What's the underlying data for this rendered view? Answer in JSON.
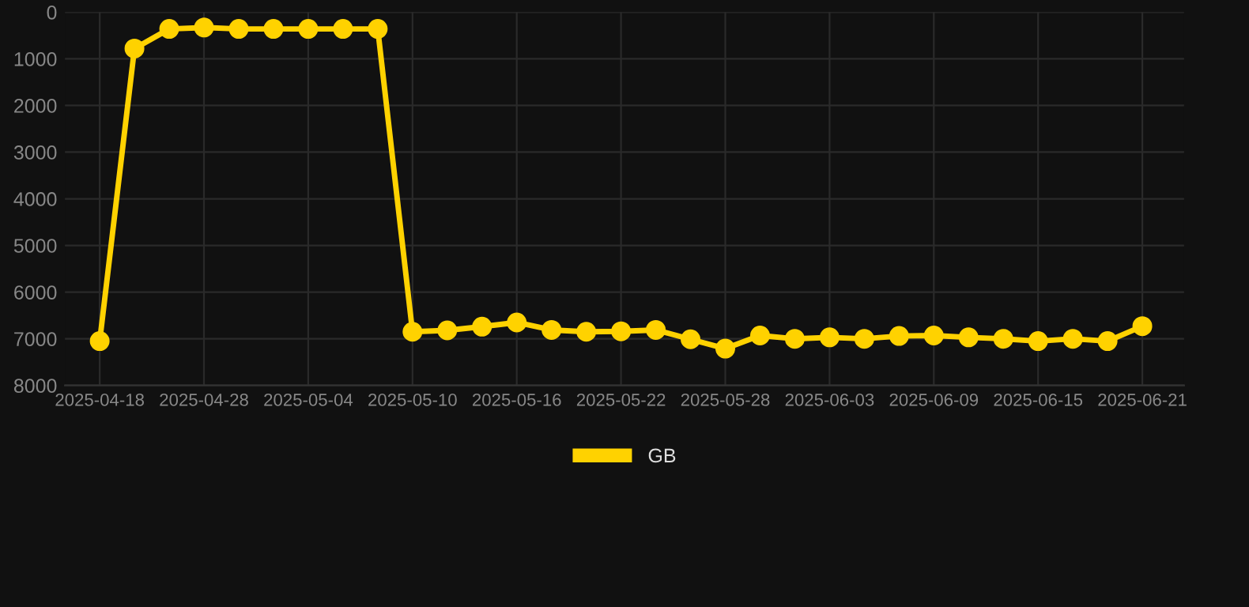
{
  "chart_data": {
    "type": "line",
    "categories": [
      "2025-04-18",
      null,
      null,
      "2025-04-28",
      null,
      null,
      "2025-05-04",
      null,
      null,
      "2025-05-10",
      null,
      null,
      "2025-05-16",
      null,
      null,
      "2025-05-22",
      null,
      null,
      "2025-05-28",
      null,
      null,
      "2025-06-03",
      null,
      null,
      "2025-06-09",
      null,
      null,
      "2025-06-15",
      null,
      null,
      "2025-06-21"
    ],
    "series": [
      {
        "name": "GB",
        "color": "#ffd200",
        "values": [
          7050,
          780,
          360,
          330,
          360,
          360,
          360,
          360,
          360,
          6850,
          6820,
          6740,
          6650,
          6810,
          6850,
          6840,
          6810,
          7010,
          7210,
          6930,
          7000,
          6970,
          7000,
          6940,
          6930,
          6970,
          7000,
          7050,
          7000,
          7050,
          6730
        ]
      }
    ],
    "ylim": [
      8000,
      0
    ],
    "yticks": [
      0,
      1000,
      2000,
      3000,
      4000,
      5000,
      6000,
      7000,
      8000
    ],
    "grid": true,
    "legend": "bottom",
    "marker": "circle",
    "line_style": "solid"
  }
}
